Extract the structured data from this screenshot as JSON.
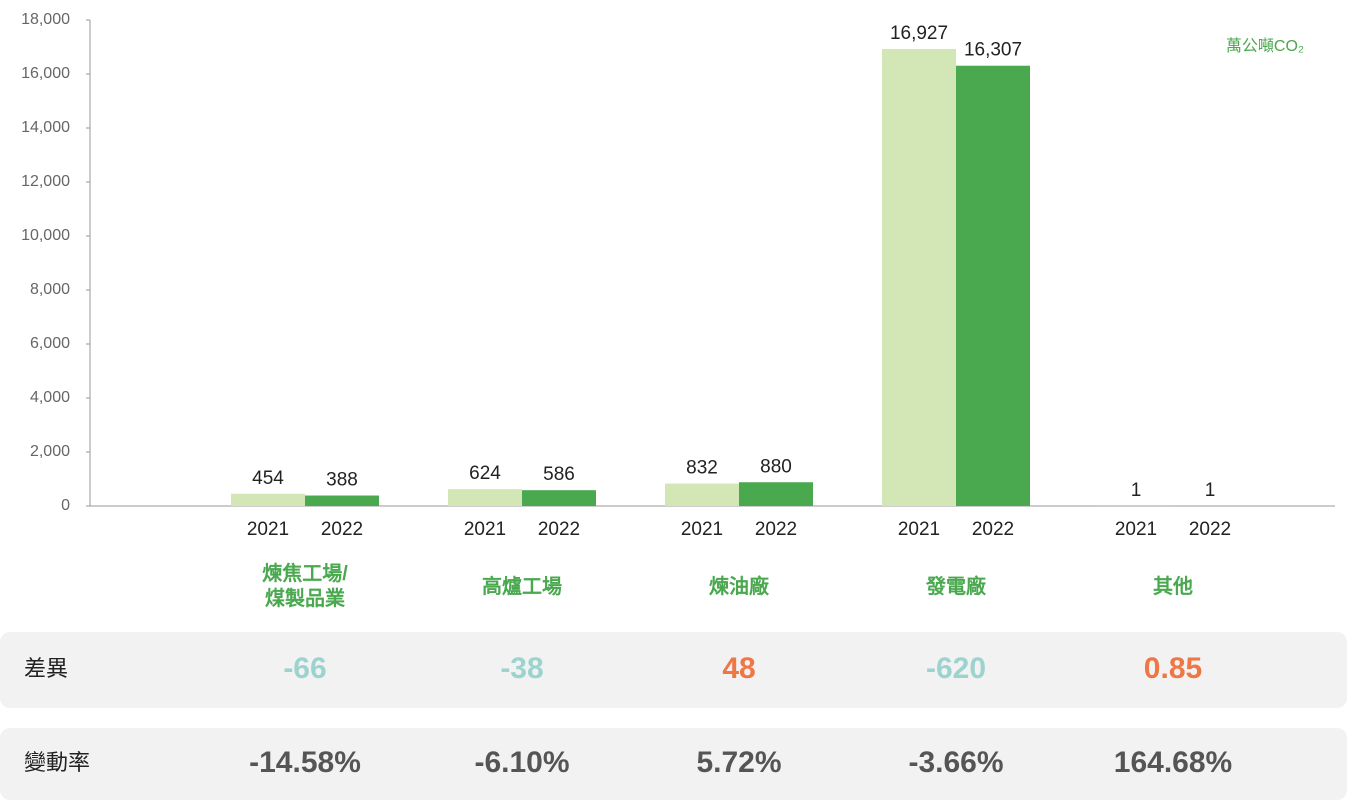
{
  "chart_data": {
    "type": "bar",
    "unit_label": "萬公噸CO₂",
    "categories": [
      "煉焦工場/\n煤製品業",
      "高爐工場",
      "煉油廠",
      "發電廠",
      "其他"
    ],
    "series": [
      {
        "name": "2021",
        "color": "#d3e6b6",
        "values": [
          454,
          624,
          832,
          16927,
          1
        ],
        "value_labels": [
          "454",
          "624",
          "832",
          "16,927",
          "1"
        ]
      },
      {
        "name": "2022",
        "color": "#4aa84f",
        "values": [
          388,
          586,
          880,
          16307,
          1
        ],
        "value_labels": [
          "388",
          "586",
          "880",
          "16,307",
          "1"
        ]
      }
    ],
    "ylim": [
      0,
      18000
    ],
    "yticks": [
      0,
      {
        "value": 2000,
        "label": "2,000"
      },
      {
        "value": 4000,
        "label": "4,000"
      },
      {
        "value": 6000,
        "label": "6,000"
      },
      {
        "value": 8000,
        "label": "8,000"
      },
      {
        "value": 10000,
        "label": "10,000"
      },
      {
        "value": 12000,
        "label": "12,000"
      },
      {
        "value": 14000,
        "label": "14,000"
      },
      {
        "value": 16000,
        "label": "16,000"
      },
      {
        "value": 18000,
        "label": "18,000"
      }
    ],
    "grid": false
  },
  "table": {
    "rows": [
      {
        "label": "差異",
        "cells": [
          "-66",
          "-38",
          "48",
          "-620",
          "0.85"
        ],
        "colors": [
          "#9dd3cf",
          "#9dd3cf",
          "#ef7645",
          "#9dd3cf",
          "#ef7645"
        ]
      },
      {
        "label": "變動率",
        "cells": [
          "-14.58%",
          "-6.10%",
          "5.72%",
          "-3.66%",
          "164.68%"
        ],
        "colors": [
          "#555555",
          "#555555",
          "#555555",
          "#555555",
          "#555555"
        ]
      }
    ]
  }
}
